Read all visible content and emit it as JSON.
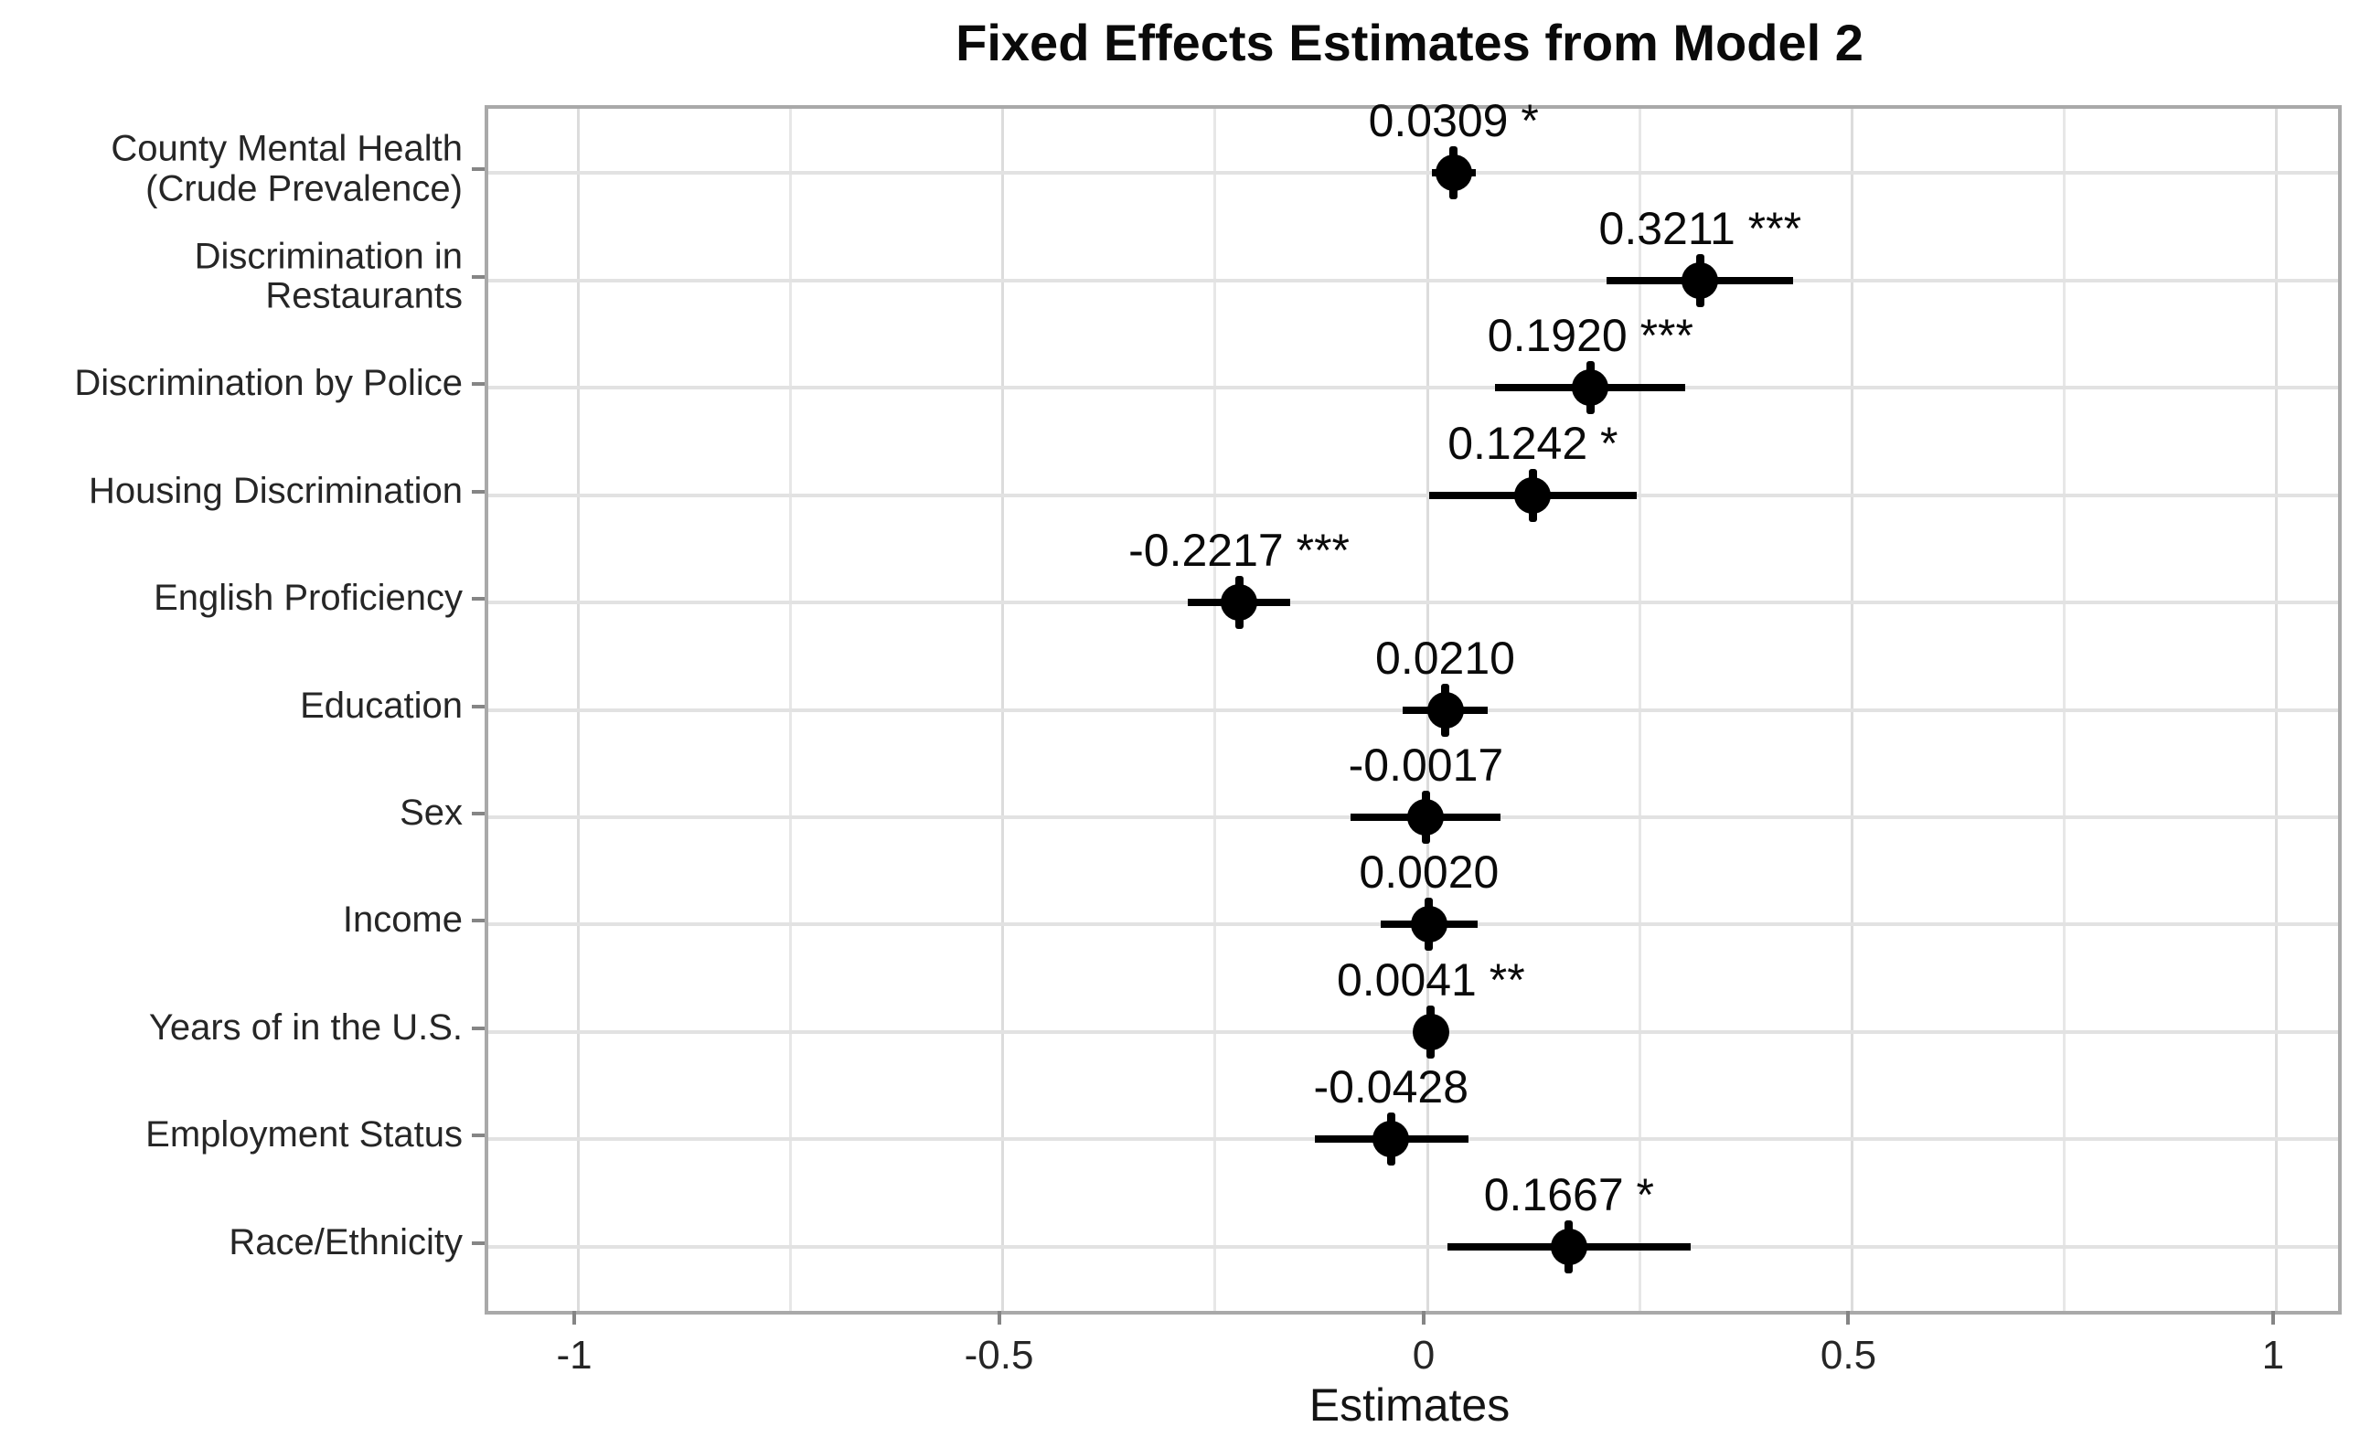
{
  "title": "Fixed Effects Estimates from Model 2",
  "x_axis": {
    "label": "Estimates",
    "major_ticks": [
      -1,
      -0.5,
      0,
      0.5,
      1
    ],
    "major_tick_labels": [
      "-1",
      "-0.5",
      "0",
      "0.5",
      "1"
    ],
    "minor_gridlines": [
      -0.75,
      -0.25,
      0.25,
      0.75
    ],
    "range": [
      -1.1056,
      1.0722
    ]
  },
  "colors": {
    "background": "#ffffff",
    "panel_border": "#a9a9a9",
    "major_gridline": "#dcdcdc",
    "minor_gridline": "#e7e7e7",
    "horizontal_gridline": "#e2e2e2",
    "axis_tick": "#858585",
    "point_and_bar": "#000000",
    "text": "#0a0a0a"
  },
  "chart_data": {
    "type": "scatter",
    "subtype": "forest-plot-pointrange",
    "orientation": "horizontal",
    "title": "Fixed Effects Estimates from Model 2",
    "xlabel": "Estimates",
    "ylabel": "",
    "xlim": [
      -1.1056,
      1.0722
    ],
    "grid": true,
    "legend": false,
    "categories": [
      "County Mental Health\n(Crude Prevalence)",
      "Discrimination in\nRestaurants",
      "Discrimination by Police",
      "Housing Discrimination",
      "English Proficiency",
      "Education",
      "Sex",
      "Income",
      "Years of in the U.S.",
      "Employment Status",
      "Race/Ethnicity"
    ],
    "points": [
      {
        "label": "County Mental Health\n(Crude Prevalence)",
        "estimate": 0.0309,
        "stars": "*",
        "display": "0.0309 *",
        "ci_low": 0.005,
        "ci_high": 0.057
      },
      {
        "label": "Discrimination in\nRestaurants",
        "estimate": 0.3211,
        "stars": "***",
        "display": "0.3211 ***",
        "ci_low": 0.211,
        "ci_high": 0.431
      },
      {
        "label": "Discrimination by Police",
        "estimate": 0.192,
        "stars": "***",
        "display": "0.1920 ***",
        "ci_low": 0.08,
        "ci_high": 0.304
      },
      {
        "label": "Housing Discrimination",
        "estimate": 0.1242,
        "stars": "*",
        "display": "0.1242 *",
        "ci_low": 0.002,
        "ci_high": 0.246
      },
      {
        "label": "English Proficiency",
        "estimate": -0.2217,
        "stars": "***",
        "display": "-0.2217 ***",
        "ci_low": -0.282,
        "ci_high": -0.162
      },
      {
        "label": "Education",
        "estimate": 0.021,
        "stars": "",
        "display": "0.0210",
        "ci_low": -0.029,
        "ci_high": 0.071
      },
      {
        "label": "Sex",
        "estimate": -0.0017,
        "stars": "",
        "display": "-0.0017",
        "ci_low": -0.09,
        "ci_high": 0.086
      },
      {
        "label": "Income",
        "estimate": 0.002,
        "stars": "",
        "display": "0.0020",
        "ci_low": -0.055,
        "ci_high": 0.059
      },
      {
        "label": "Years of in the U.S.",
        "estimate": 0.0041,
        "stars": "**",
        "display": "0.0041 **",
        "ci_low": -0.004,
        "ci_high": 0.012
      },
      {
        "label": "Employment Status",
        "estimate": -0.0428,
        "stars": "",
        "display": "-0.0428",
        "ci_low": -0.132,
        "ci_high": 0.048
      },
      {
        "label": "Race/Ethnicity",
        "estimate": 0.1667,
        "stars": "*",
        "display": "0.1667 *",
        "ci_low": 0.024,
        "ci_high": 0.31
      }
    ]
  }
}
